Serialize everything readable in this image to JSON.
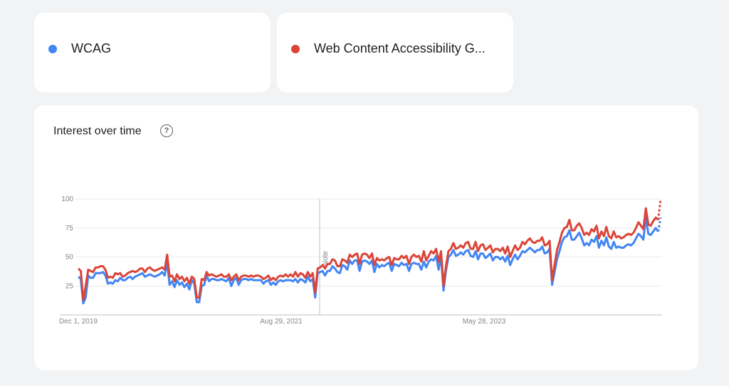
{
  "legend": [
    {
      "label": "WCAG",
      "color": "#4285f4"
    },
    {
      "label": "Web Content Accessibility G...",
      "color": "#db4437"
    }
  ],
  "chart": {
    "title": "Interest over time",
    "help_icon": "help-circle-icon",
    "note_label": "Note"
  },
  "chart_data": {
    "type": "line",
    "title": "Interest over time",
    "xlabel": "",
    "ylabel": "",
    "ylim": [
      0,
      100
    ],
    "yticks": [
      100,
      75,
      50,
      25
    ],
    "xtick_labels": [
      "Dec 1, 2019",
      "Aug 29, 2021",
      "May 28, 2023"
    ],
    "x_range": [
      "Dec 1, 2019",
      "Dec 2024"
    ],
    "grid": true,
    "partial_last_point": true,
    "series": [
      {
        "name": "WCAG",
        "color": "#4285f4",
        "values": [
          33,
          31,
          10,
          15,
          34,
          32,
          32,
          36,
          36,
          36,
          37,
          34,
          27,
          28,
          27,
          30,
          29,
          32,
          30,
          30,
          32,
          33,
          31,
          33,
          34,
          35,
          36,
          33,
          34,
          35,
          34,
          33,
          34,
          35,
          37,
          34,
          45,
          26,
          29,
          24,
          30,
          26,
          28,
          24,
          27,
          22,
          30,
          27,
          11,
          11,
          25,
          26,
          34,
          29,
          31,
          31,
          30,
          30,
          31,
          30,
          29,
          32,
          25,
          30,
          32,
          26,
          30,
          31,
          31,
          30,
          31,
          30,
          30,
          30,
          30,
          27,
          29,
          30,
          26,
          28,
          26,
          29,
          30,
          29,
          30,
          30,
          30,
          29,
          31,
          28,
          31,
          30,
          28,
          33,
          29,
          31,
          15,
          36,
          37,
          38,
          34,
          38,
          38,
          42,
          40,
          37,
          36,
          43,
          42,
          39,
          47,
          44,
          47,
          47,
          38,
          46,
          47,
          46,
          44,
          47,
          37,
          44,
          41,
          43,
          42,
          44,
          45,
          38,
          44,
          43,
          42,
          45,
          43,
          44,
          38,
          44,
          45,
          44,
          44,
          39,
          46,
          41,
          46,
          48,
          47,
          51,
          39,
          50,
          21,
          38,
          50,
          52,
          56,
          51,
          52,
          54,
          52,
          55,
          56,
          51,
          50,
          55,
          48,
          53,
          53,
          49,
          51,
          53,
          47,
          50,
          50,
          48,
          50,
          46,
          51,
          43,
          48,
          52,
          48,
          51,
          55,
          54,
          56,
          58,
          56,
          54,
          56,
          56,
          59,
          53,
          54,
          57,
          26,
          37,
          48,
          55,
          63,
          67,
          68,
          73,
          65,
          65,
          68,
          71,
          66,
          60,
          62,
          60,
          65,
          63,
          68,
          58,
          64,
          60,
          67,
          59,
          57,
          63,
          58,
          59,
          58,
          58,
          60,
          61,
          60,
          62,
          66,
          70,
          68,
          65,
          84,
          70,
          69,
          72,
          75,
          72,
          84
        ]
      },
      {
        "name": "Web Content Accessibility G...",
        "color": "#db4437",
        "values": [
          40,
          38,
          13,
          25,
          39,
          38,
          37,
          41,
          41,
          42,
          42,
          39,
          32,
          33,
          32,
          36,
          35,
          36,
          33,
          34,
          36,
          37,
          38,
          37,
          38,
          40,
          40,
          37,
          40,
          41,
          39,
          38,
          39,
          40,
          41,
          39,
          52,
          33,
          34,
          29,
          35,
          31,
          33,
          29,
          32,
          27,
          33,
          31,
          15,
          15,
          31,
          30,
          37,
          34,
          35,
          34,
          33,
          34,
          35,
          33,
          33,
          35,
          30,
          33,
          35,
          30,
          33,
          34,
          34,
          33,
          34,
          33,
          34,
          34,
          33,
          31,
          32,
          34,
          30,
          32,
          30,
          33,
          34,
          33,
          35,
          33,
          35,
          33,
          37,
          33,
          36,
          35,
          32,
          37,
          33,
          36,
          19,
          40,
          41,
          43,
          40,
          44,
          44,
          48,
          47,
          42,
          42,
          48,
          47,
          45,
          52,
          50,
          52,
          53,
          44,
          52,
          53,
          52,
          49,
          53,
          43,
          49,
          47,
          48,
          47,
          49,
          50,
          43,
          49,
          48,
          48,
          51,
          49,
          51,
          44,
          50,
          52,
          50,
          51,
          46,
          55,
          47,
          51,
          55,
          53,
          57,
          46,
          55,
          25,
          42,
          55,
          57,
          62,
          57,
          58,
          60,
          58,
          62,
          63,
          57,
          57,
          63,
          55,
          60,
          61,
          56,
          58,
          60,
          54,
          57,
          57,
          55,
          58,
          53,
          59,
          50,
          55,
          60,
          56,
          58,
          63,
          61,
          64,
          66,
          63,
          62,
          64,
          64,
          67,
          60,
          61,
          64,
          30,
          43,
          56,
          63,
          71,
          75,
          76,
          82,
          73,
          73,
          77,
          79,
          75,
          69,
          71,
          69,
          74,
          72,
          77,
          66,
          72,
          68,
          76,
          68,
          66,
          72,
          67,
          68,
          66,
          67,
          69,
          70,
          69,
          71,
          75,
          80,
          77,
          74,
          92,
          78,
          77,
          81,
          84,
          82,
          100
        ]
      }
    ]
  }
}
